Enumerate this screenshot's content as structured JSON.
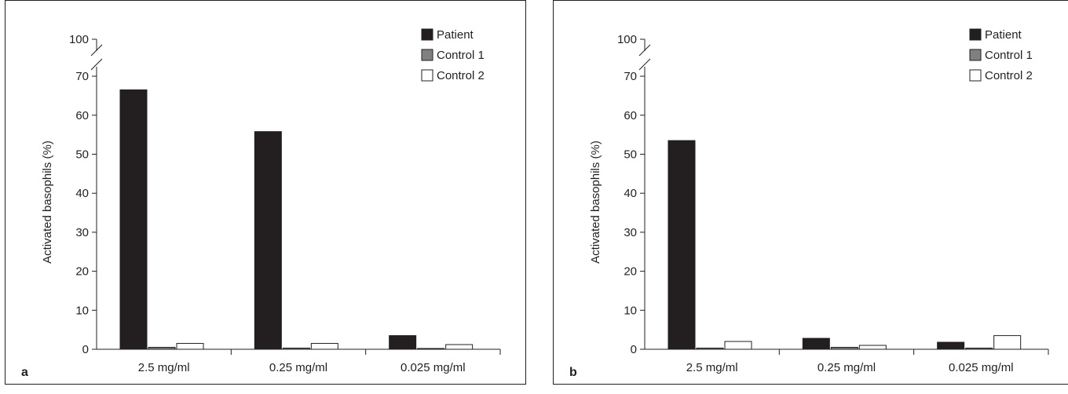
{
  "chart_data": [
    {
      "type": "bar",
      "panel_label": "a",
      "ylabel": "Activated basophils (%)",
      "xlabel": "",
      "categories": [
        "2.5 mg/ml",
        "0.25 mg/ml",
        "0.025 mg/ml"
      ],
      "y_ticks": [
        0,
        10,
        20,
        30,
        40,
        50,
        60,
        70,
        100
      ],
      "ylim": [
        0,
        100
      ],
      "axis_break": [
        70,
        100
      ],
      "legend_position": "top-right",
      "series": [
        {
          "name": "Patient",
          "color": "#231f20",
          "values": [
            66.5,
            55.8,
            3.5
          ]
        },
        {
          "name": "Control 1",
          "color": "#808080",
          "values": [
            0.5,
            0.3,
            0.2
          ]
        },
        {
          "name": "Control 2",
          "color": "#ffffff",
          "values": [
            1.5,
            1.5,
            1.2
          ]
        }
      ]
    },
    {
      "type": "bar",
      "panel_label": "b",
      "ylabel": "Activated basophils (%)",
      "xlabel": "",
      "categories": [
        "2.5 mg/ml",
        "0.25 mg/ml",
        "0.025 mg/ml"
      ],
      "y_ticks": [
        0,
        10,
        20,
        30,
        40,
        50,
        60,
        70,
        100
      ],
      "ylim": [
        0,
        100
      ],
      "axis_break": [
        70,
        100
      ],
      "legend_position": "top-right",
      "series": [
        {
          "name": "Patient",
          "color": "#231f20",
          "values": [
            53.5,
            2.8,
            1.8
          ]
        },
        {
          "name": "Control 1",
          "color": "#808080",
          "values": [
            0.3,
            0.5,
            0.3
          ]
        },
        {
          "name": "Control 2",
          "color": "#ffffff",
          "values": [
            2.0,
            1.0,
            3.5
          ]
        }
      ]
    }
  ]
}
